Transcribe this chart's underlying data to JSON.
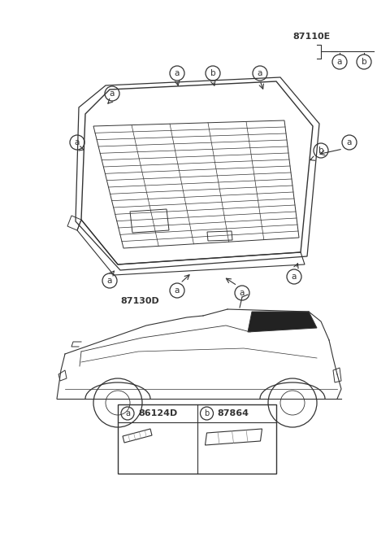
{
  "bg_color": "#ffffff",
  "line_color": "#333333",
  "light_line_color": "#888888",
  "title": "87110E",
  "part1_label": "87130D",
  "legend_a_label": "86124D",
  "legend_b_label": "87864",
  "figsize": [
    4.8,
    6.55
  ],
  "dpi": 100
}
